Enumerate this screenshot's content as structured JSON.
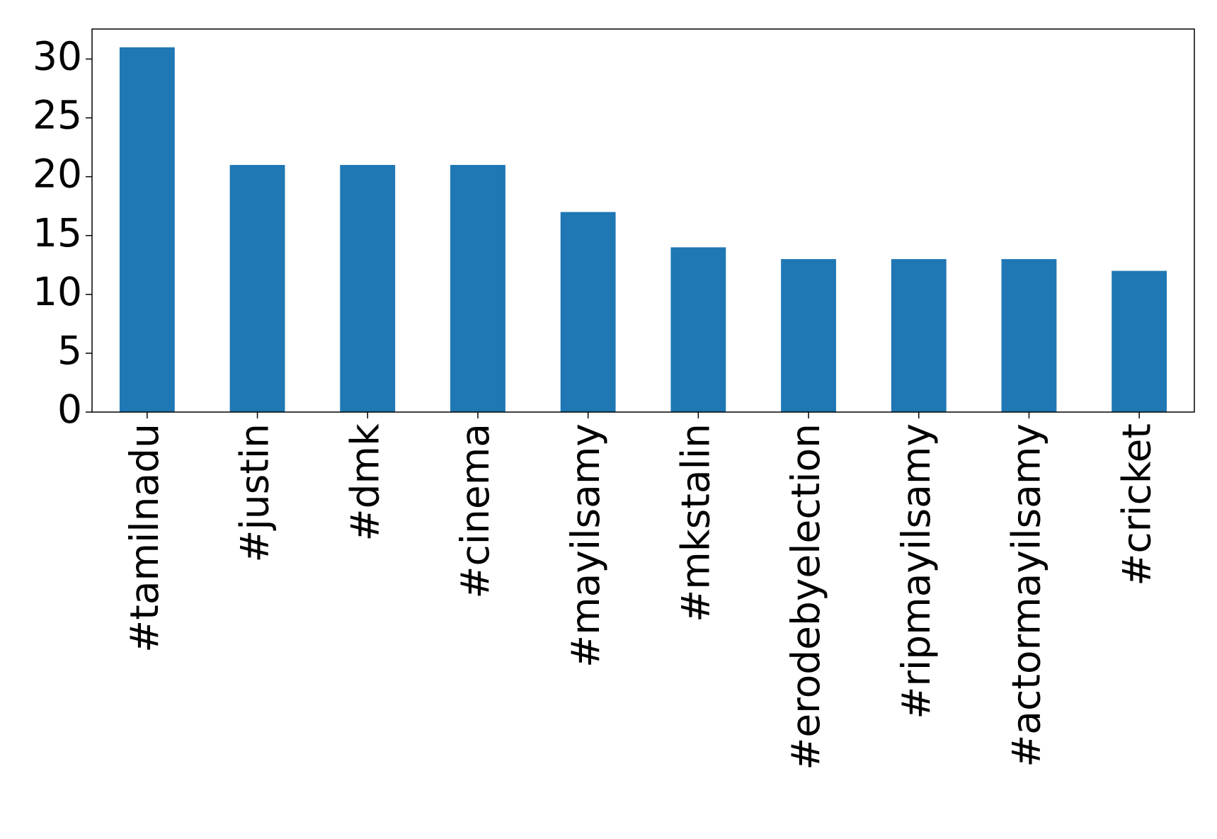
{
  "chart_data": {
    "type": "bar",
    "categories": [
      "#tamilnadu",
      "#justin",
      "#dmk",
      "#cinema",
      "#mayilsamy",
      "#mkstalin",
      "#erodebyelection",
      "#ripmayilsamy",
      "#actormayilsamy",
      "#cricket"
    ],
    "values": [
      31,
      21,
      21,
      21,
      17,
      14,
      13,
      13,
      13,
      12
    ],
    "color": "#1f77b4",
    "ylim": [
      0,
      32.55
    ],
    "yticks": [
      0,
      5,
      10,
      15,
      20,
      25,
      30
    ],
    "grid": false
  }
}
